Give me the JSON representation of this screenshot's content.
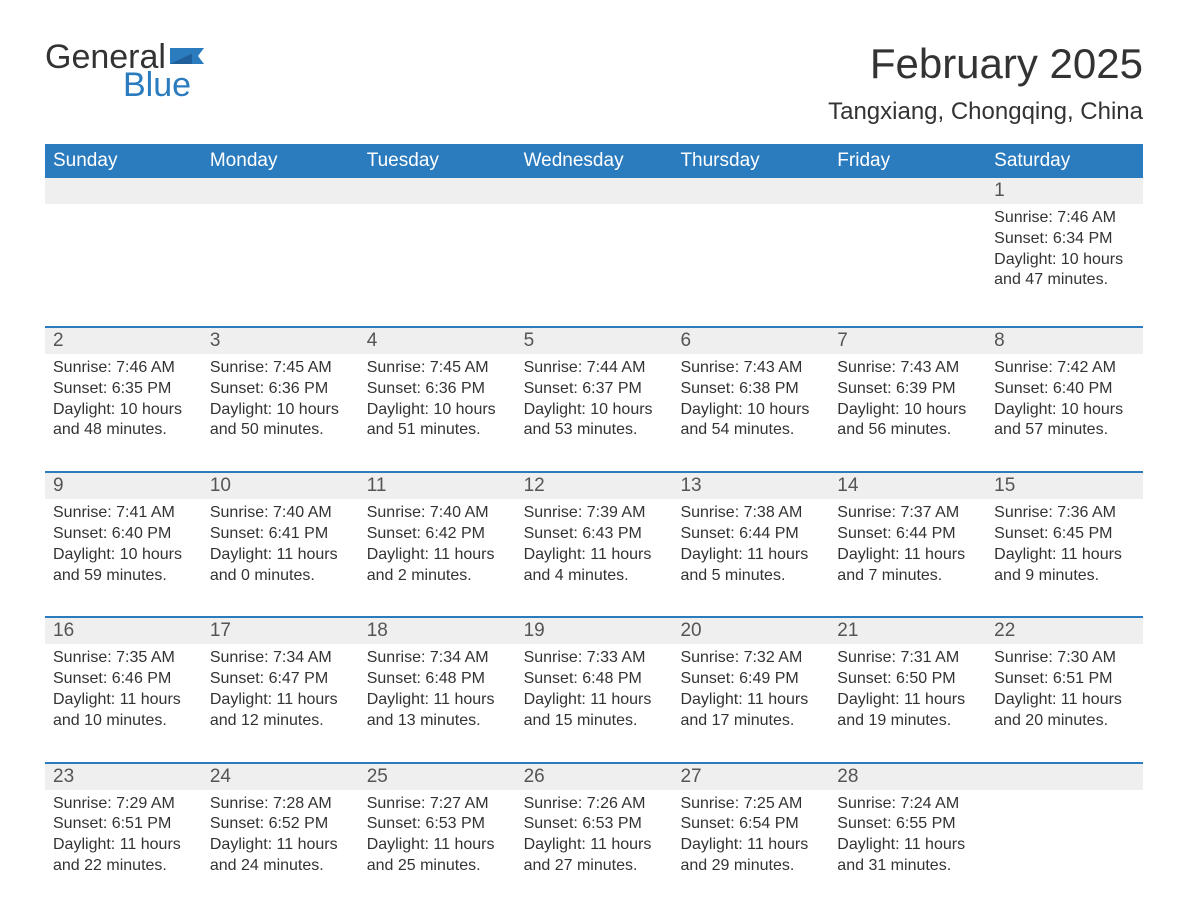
{
  "logo": {
    "word1": "General",
    "word2": "Blue"
  },
  "colors": {
    "brand_blue": "#2b7bbf",
    "header_bg": "#2b7bbf",
    "header_text": "#ffffff",
    "daynum_bg": "#efefef",
    "text": "#333333",
    "background": "#ffffff"
  },
  "typography": {
    "month_title_fontsize": 42,
    "location_fontsize": 24,
    "weekday_fontsize": 19,
    "daynum_fontsize": 19,
    "body_fontsize": 16
  },
  "title": "February 2025",
  "location": "Tangxiang, Chongqing, China",
  "weekdays": [
    "Sunday",
    "Monday",
    "Tuesday",
    "Wednesday",
    "Thursday",
    "Friday",
    "Saturday"
  ],
  "weeks": [
    [
      {
        "n": "",
        "sunrise": "",
        "sunset": "",
        "daylight": ""
      },
      {
        "n": "",
        "sunrise": "",
        "sunset": "",
        "daylight": ""
      },
      {
        "n": "",
        "sunrise": "",
        "sunset": "",
        "daylight": ""
      },
      {
        "n": "",
        "sunrise": "",
        "sunset": "",
        "daylight": ""
      },
      {
        "n": "",
        "sunrise": "",
        "sunset": "",
        "daylight": ""
      },
      {
        "n": "",
        "sunrise": "",
        "sunset": "",
        "daylight": ""
      },
      {
        "n": "1",
        "sunrise": "Sunrise: 7:46 AM",
        "sunset": "Sunset: 6:34 PM",
        "daylight": "Daylight: 10 hours and 47 minutes."
      }
    ],
    [
      {
        "n": "2",
        "sunrise": "Sunrise: 7:46 AM",
        "sunset": "Sunset: 6:35 PM",
        "daylight": "Daylight: 10 hours and 48 minutes."
      },
      {
        "n": "3",
        "sunrise": "Sunrise: 7:45 AM",
        "sunset": "Sunset: 6:36 PM",
        "daylight": "Daylight: 10 hours and 50 minutes."
      },
      {
        "n": "4",
        "sunrise": "Sunrise: 7:45 AM",
        "sunset": "Sunset: 6:36 PM",
        "daylight": "Daylight: 10 hours and 51 minutes."
      },
      {
        "n": "5",
        "sunrise": "Sunrise: 7:44 AM",
        "sunset": "Sunset: 6:37 PM",
        "daylight": "Daylight: 10 hours and 53 minutes."
      },
      {
        "n": "6",
        "sunrise": "Sunrise: 7:43 AM",
        "sunset": "Sunset: 6:38 PM",
        "daylight": "Daylight: 10 hours and 54 minutes."
      },
      {
        "n": "7",
        "sunrise": "Sunrise: 7:43 AM",
        "sunset": "Sunset: 6:39 PM",
        "daylight": "Daylight: 10 hours and 56 minutes."
      },
      {
        "n": "8",
        "sunrise": "Sunrise: 7:42 AM",
        "sunset": "Sunset: 6:40 PM",
        "daylight": "Daylight: 10 hours and 57 minutes."
      }
    ],
    [
      {
        "n": "9",
        "sunrise": "Sunrise: 7:41 AM",
        "sunset": "Sunset: 6:40 PM",
        "daylight": "Daylight: 10 hours and 59 minutes."
      },
      {
        "n": "10",
        "sunrise": "Sunrise: 7:40 AM",
        "sunset": "Sunset: 6:41 PM",
        "daylight": "Daylight: 11 hours and 0 minutes."
      },
      {
        "n": "11",
        "sunrise": "Sunrise: 7:40 AM",
        "sunset": "Sunset: 6:42 PM",
        "daylight": "Daylight: 11 hours and 2 minutes."
      },
      {
        "n": "12",
        "sunrise": "Sunrise: 7:39 AM",
        "sunset": "Sunset: 6:43 PM",
        "daylight": "Daylight: 11 hours and 4 minutes."
      },
      {
        "n": "13",
        "sunrise": "Sunrise: 7:38 AM",
        "sunset": "Sunset: 6:44 PM",
        "daylight": "Daylight: 11 hours and 5 minutes."
      },
      {
        "n": "14",
        "sunrise": "Sunrise: 7:37 AM",
        "sunset": "Sunset: 6:44 PM",
        "daylight": "Daylight: 11 hours and 7 minutes."
      },
      {
        "n": "15",
        "sunrise": "Sunrise: 7:36 AM",
        "sunset": "Sunset: 6:45 PM",
        "daylight": "Daylight: 11 hours and 9 minutes."
      }
    ],
    [
      {
        "n": "16",
        "sunrise": "Sunrise: 7:35 AM",
        "sunset": "Sunset: 6:46 PM",
        "daylight": "Daylight: 11 hours and 10 minutes."
      },
      {
        "n": "17",
        "sunrise": "Sunrise: 7:34 AM",
        "sunset": "Sunset: 6:47 PM",
        "daylight": "Daylight: 11 hours and 12 minutes."
      },
      {
        "n": "18",
        "sunrise": "Sunrise: 7:34 AM",
        "sunset": "Sunset: 6:48 PM",
        "daylight": "Daylight: 11 hours and 13 minutes."
      },
      {
        "n": "19",
        "sunrise": "Sunrise: 7:33 AM",
        "sunset": "Sunset: 6:48 PM",
        "daylight": "Daylight: 11 hours and 15 minutes."
      },
      {
        "n": "20",
        "sunrise": "Sunrise: 7:32 AM",
        "sunset": "Sunset: 6:49 PM",
        "daylight": "Daylight: 11 hours and 17 minutes."
      },
      {
        "n": "21",
        "sunrise": "Sunrise: 7:31 AM",
        "sunset": "Sunset: 6:50 PM",
        "daylight": "Daylight: 11 hours and 19 minutes."
      },
      {
        "n": "22",
        "sunrise": "Sunrise: 7:30 AM",
        "sunset": "Sunset: 6:51 PM",
        "daylight": "Daylight: 11 hours and 20 minutes."
      }
    ],
    [
      {
        "n": "23",
        "sunrise": "Sunrise: 7:29 AM",
        "sunset": "Sunset: 6:51 PM",
        "daylight": "Daylight: 11 hours and 22 minutes."
      },
      {
        "n": "24",
        "sunrise": "Sunrise: 7:28 AM",
        "sunset": "Sunset: 6:52 PM",
        "daylight": "Daylight: 11 hours and 24 minutes."
      },
      {
        "n": "25",
        "sunrise": "Sunrise: 7:27 AM",
        "sunset": "Sunset: 6:53 PM",
        "daylight": "Daylight: 11 hours and 25 minutes."
      },
      {
        "n": "26",
        "sunrise": "Sunrise: 7:26 AM",
        "sunset": "Sunset: 6:53 PM",
        "daylight": "Daylight: 11 hours and 27 minutes."
      },
      {
        "n": "27",
        "sunrise": "Sunrise: 7:25 AM",
        "sunset": "Sunset: 6:54 PM",
        "daylight": "Daylight: 11 hours and 29 minutes."
      },
      {
        "n": "28",
        "sunrise": "Sunrise: 7:24 AM",
        "sunset": "Sunset: 6:55 PM",
        "daylight": "Daylight: 11 hours and 31 minutes."
      },
      {
        "n": "",
        "sunrise": "",
        "sunset": "",
        "daylight": ""
      }
    ]
  ]
}
